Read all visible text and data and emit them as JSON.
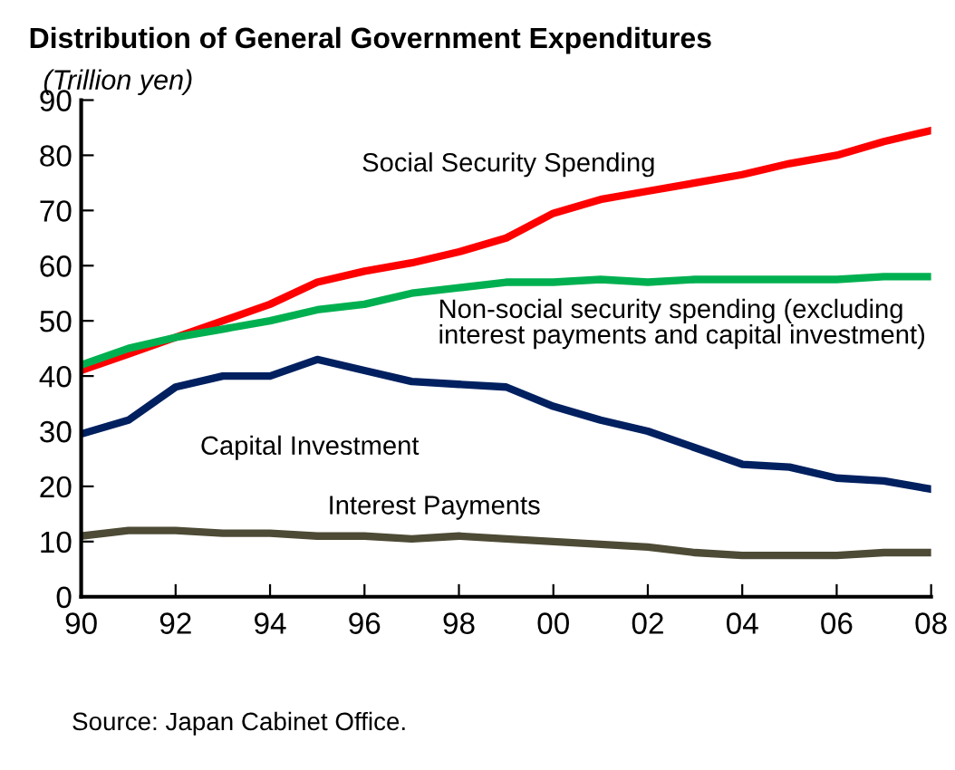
{
  "chart_data": {
    "type": "line",
    "title": "Distribution of General Government Expenditures",
    "subtitle": "(Trillion yen)",
    "x": [
      1990,
      1991,
      1992,
      1993,
      1994,
      1995,
      1996,
      1997,
      1998,
      1999,
      2000,
      2001,
      2002,
      2003,
      2004,
      2005,
      2006,
      2007,
      2008
    ],
    "series": [
      {
        "name": "Social Security Spending",
        "color": "#ff0000",
        "values": [
          41,
          44,
          47,
          50,
          53,
          57,
          59,
          60.5,
          62.5,
          65,
          69.5,
          72,
          73.5,
          75,
          76.5,
          78.5,
          80,
          82.5,
          84.5
        ]
      },
      {
        "name": "Non-social security spending (excluding interest payments and capital investment)",
        "color": "#00b050",
        "values": [
          42,
          45,
          47,
          48.5,
          50,
          52,
          53,
          55,
          56,
          57,
          57,
          57.5,
          57,
          57.5,
          57.5,
          57.5,
          57.5,
          58,
          58
        ]
      },
      {
        "name": "Capital Investment",
        "color": "#002060",
        "values": [
          29.5,
          32,
          38,
          40,
          40,
          43,
          41,
          39,
          38.5,
          38,
          34.5,
          32,
          30,
          27,
          24,
          23.5,
          21.5,
          21,
          19.5
        ]
      },
      {
        "name": "Interest Payments",
        "color": "#4d4a35",
        "values": [
          11,
          12,
          12,
          11.5,
          11.5,
          11,
          11,
          10.5,
          11,
          10.5,
          10,
          9.5,
          9,
          8,
          7.5,
          7.5,
          7.5,
          8,
          8
        ]
      }
    ],
    "xlim": [
      1990,
      2008
    ],
    "xticks": [
      {
        "value": 1990,
        "label": "90"
      },
      {
        "value": 1992,
        "label": "92"
      },
      {
        "value": 1994,
        "label": "94"
      },
      {
        "value": 1996,
        "label": "96"
      },
      {
        "value": 1998,
        "label": "98"
      },
      {
        "value": 2000,
        "label": "00"
      },
      {
        "value": 2002,
        "label": "02"
      },
      {
        "value": 2004,
        "label": "04"
      },
      {
        "value": 2006,
        "label": "06"
      },
      {
        "value": 2008,
        "label": "08"
      }
    ],
    "ylim": [
      0,
      90
    ],
    "yticks": [
      0,
      10,
      20,
      30,
      40,
      50,
      60,
      70,
      80,
      90
    ],
    "grid": false,
    "legend": false,
    "marker": "none",
    "line_style": "solid",
    "annotations": [
      "Source: Japan Cabinet Office."
    ]
  }
}
